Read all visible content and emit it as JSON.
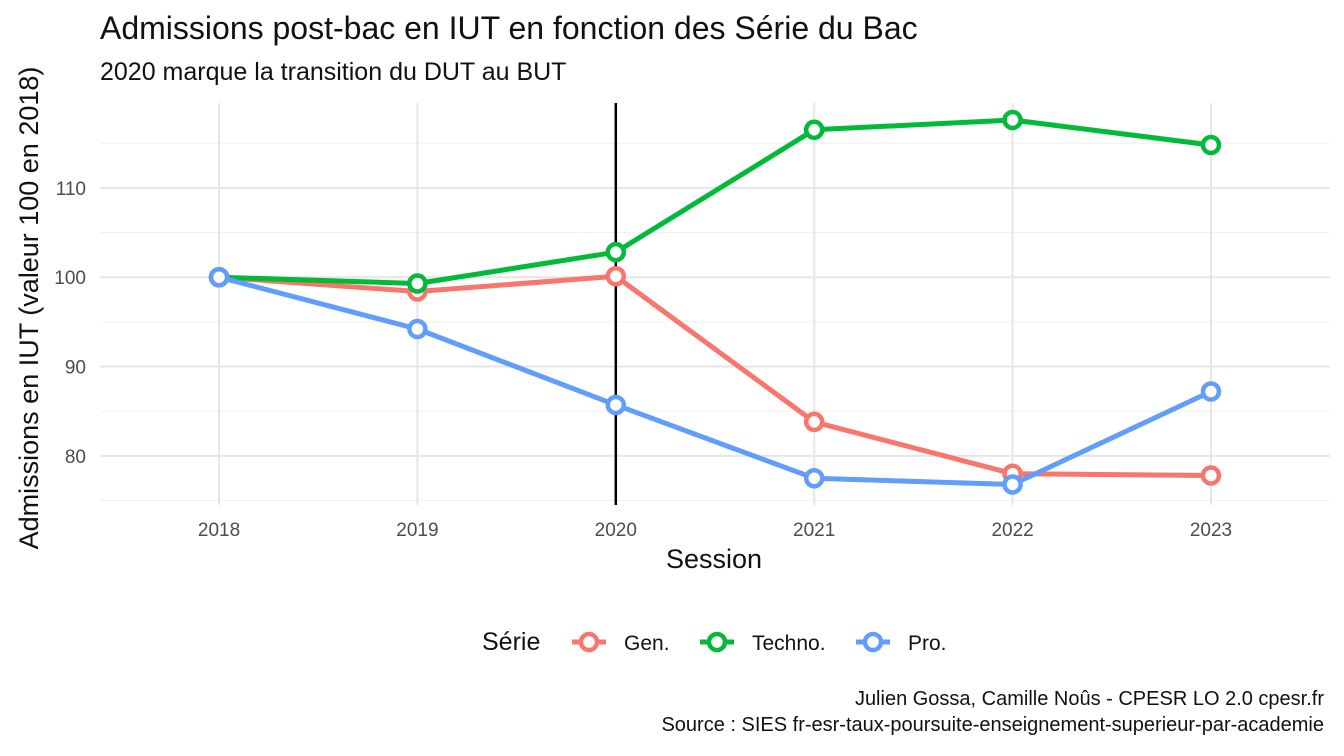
{
  "chart_data": {
    "type": "line",
    "title": "Admissions post-bac en IUT en fonction des Série du Bac",
    "subtitle": "2020 marque la transition du DUT au BUT",
    "xlabel": "Session",
    "ylabel": "Admissions en IUT (valeur 100 en 2018)",
    "x": [
      2018,
      2019,
      2020,
      2021,
      2022,
      2023
    ],
    "x_ticks": [
      "2018",
      "2019",
      "2020",
      "2021",
      "2022",
      "2023"
    ],
    "y_ticks": [
      "80",
      "90",
      "100",
      "110"
    ],
    "y_tick_values": [
      80,
      90,
      100,
      110
    ],
    "ylim": [
      74.5,
      119.5
    ],
    "xlim": [
      2017.4,
      2023.6
    ],
    "grid": true,
    "vertical_line_x": 2020,
    "legend_title": "Série",
    "legend_position": "bottom",
    "series": [
      {
        "name": "Gen.",
        "color": "#F8766D",
        "values": [
          100,
          98.4,
          100.1,
          83.8,
          78.0,
          77.8
        ]
      },
      {
        "name": "Techno.",
        "color": "#00BA38",
        "values": [
          100,
          99.3,
          102.8,
          116.5,
          117.6,
          114.8
        ]
      },
      {
        "name": "Pro.",
        "color": "#619CFF",
        "values": [
          100,
          94.2,
          85.7,
          77.5,
          76.8,
          87.2
        ]
      }
    ],
    "caption": [
      "Julien Gossa, Camille Noûs - CPESR LO 2.0 cpesr.fr",
      "Source : SIES fr-esr-taux-poursuite-enseignement-superieur-par-academie"
    ]
  }
}
